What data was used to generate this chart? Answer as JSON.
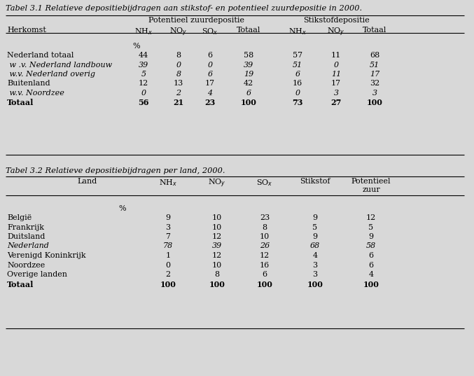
{
  "title1": "Tabel 3.1 Relatieve depositiebijdragen aan stikstof- en potentieel zuurdepositie in 2000.",
  "title2": "Tabel 3.2 Relatieve depositiebijdragen per land, 2000.",
  "table1": {
    "rows": [
      {
        "label": "Nederland totaal",
        "italic": false,
        "bold": false,
        "values": [
          "44",
          "8",
          "6",
          "58",
          "57",
          "11",
          "68"
        ]
      },
      {
        "label": " w .v. Nederland landbouw",
        "italic": true,
        "bold": false,
        "values": [
          "39",
          "0",
          "0",
          "39",
          "51",
          "0",
          "51"
        ]
      },
      {
        "label": " w.v. Nederland overig",
        "italic": true,
        "bold": false,
        "values": [
          "5",
          "8",
          "6",
          "19",
          "6",
          "11",
          "17"
        ]
      },
      {
        "label": "Buitenland",
        "italic": false,
        "bold": false,
        "values": [
          "12",
          "13",
          "17",
          "42",
          "16",
          "17",
          "32"
        ]
      },
      {
        "label": " w.v. Noordzee",
        "italic": true,
        "bold": false,
        "values": [
          "0",
          "2",
          "4",
          "6",
          "0",
          "3",
          "3"
        ]
      },
      {
        "label": "Totaal",
        "italic": false,
        "bold": true,
        "values": [
          "56",
          "21",
          "23",
          "100",
          "73",
          "27",
          "100"
        ]
      }
    ]
  },
  "table2": {
    "rows": [
      {
        "label": "België",
        "italic": false,
        "bold": false,
        "values": [
          "9",
          "10",
          "23",
          "9",
          "12"
        ]
      },
      {
        "label": "Frankrijk",
        "italic": false,
        "bold": false,
        "values": [
          "3",
          "10",
          "8",
          "5",
          "5"
        ]
      },
      {
        "label": "Duitsland",
        "italic": false,
        "bold": false,
        "values": [
          "7",
          "12",
          "10",
          "9",
          "9"
        ]
      },
      {
        "label": "Nederland",
        "italic": true,
        "bold": false,
        "values": [
          "78",
          "39",
          "26",
          "68",
          "58"
        ]
      },
      {
        "label": "Verenigd Koninkrijk",
        "italic": false,
        "bold": false,
        "values": [
          "1",
          "12",
          "12",
          "4",
          "6"
        ]
      },
      {
        "label": "Noordzee",
        "italic": false,
        "bold": false,
        "values": [
          "0",
          "10",
          "16",
          "3",
          "6"
        ]
      },
      {
        "label": "Overige landen",
        "italic": false,
        "bold": false,
        "values": [
          "2",
          "8",
          "6",
          "3",
          "4"
        ]
      },
      {
        "label": "Totaal",
        "italic": false,
        "bold": true,
        "values": [
          "100",
          "100",
          "100",
          "100",
          "100"
        ]
      }
    ]
  },
  "bg_color": "#d8d8d8",
  "font_size": 8.0,
  "title_font_size": 8.2
}
